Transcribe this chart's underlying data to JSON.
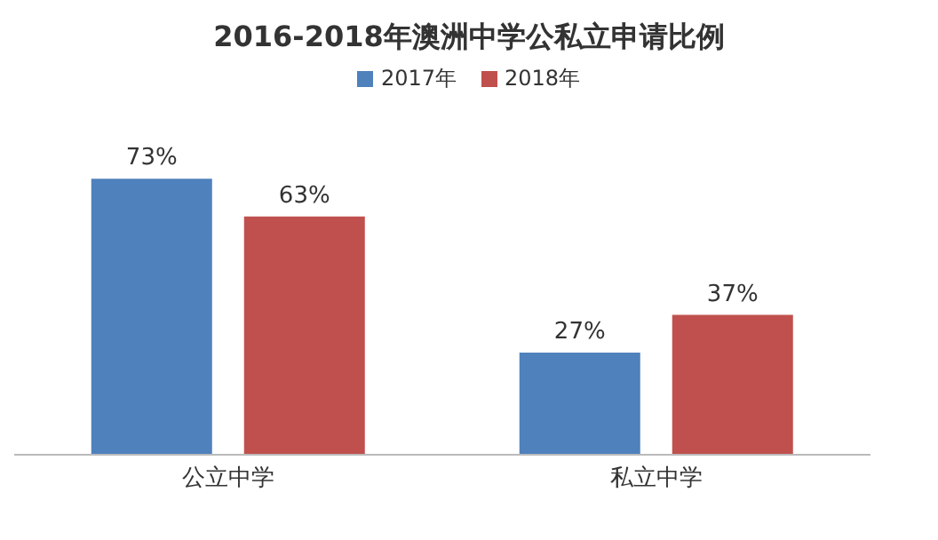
{
  "chart_data": {
    "type": "bar",
    "title": "2016-2018年澳洲中学公私立申请比例",
    "categories": [
      "公立中学",
      "私立中学"
    ],
    "series": [
      {
        "name": "2017年",
        "color": "#4f81bd",
        "values": [
          73,
          27
        ],
        "value_labels": [
          "73%",
          "27%"
        ]
      },
      {
        "name": "2018年",
        "color": "#c0504d",
        "values": [
          63,
          37
        ],
        "value_labels": [
          "63%",
          "37%"
        ]
      }
    ],
    "legend": "top",
    "grid": false
  }
}
